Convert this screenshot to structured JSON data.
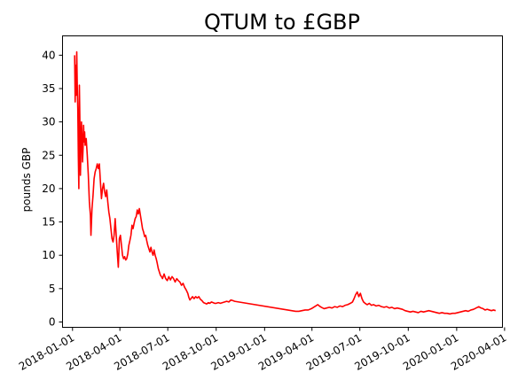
{
  "chart_data": {
    "type": "line",
    "title": "QTUM to £GBP",
    "xlabel": "",
    "ylabel": "pounds GBP",
    "ylim": [
      -0.8,
      42.9
    ],
    "xlim": [
      "2017-12-13",
      "2020-03-28"
    ],
    "grid": false,
    "legend": "none",
    "x_ticks": [
      "2018-01-01",
      "2018-04-01",
      "2018-07-01",
      "2018-10-01",
      "2019-01-01",
      "2019-04-01",
      "2019-07-01",
      "2019-10-01",
      "2020-01-01",
      "2020-04-01"
    ],
    "y_ticks": [
      0,
      5,
      10,
      15,
      20,
      25,
      30,
      35,
      40
    ],
    "series": [
      {
        "color": "#ff0000",
        "points": [
          [
            "2018-01-05",
            40.0
          ],
          [
            "2018-01-06",
            33.0
          ],
          [
            "2018-01-07",
            38.5
          ],
          [
            "2018-01-08",
            34.0
          ],
          [
            "2018-01-09",
            40.5
          ],
          [
            "2018-01-10",
            35.5
          ],
          [
            "2018-01-11",
            32.0
          ],
          [
            "2018-01-12",
            25.0
          ],
          [
            "2018-01-13",
            20.0
          ],
          [
            "2018-01-14",
            35.5
          ],
          [
            "2018-01-15",
            30.0
          ],
          [
            "2018-01-16",
            22.0
          ],
          [
            "2018-01-17",
            26.0
          ],
          [
            "2018-01-18",
            30.0
          ],
          [
            "2018-01-19",
            28.0
          ],
          [
            "2018-01-20",
            24.0
          ],
          [
            "2018-01-21",
            26.0
          ],
          [
            "2018-01-22",
            29.5
          ],
          [
            "2018-01-23",
            27.0
          ],
          [
            "2018-01-24",
            28.5
          ],
          [
            "2018-01-25",
            26.5
          ],
          [
            "2018-01-27",
            27.5
          ],
          [
            "2018-01-29",
            25.0
          ],
          [
            "2018-01-31",
            22.0
          ],
          [
            "2018-02-02",
            18.0
          ],
          [
            "2018-02-04",
            16.0
          ],
          [
            "2018-02-05",
            13.0
          ],
          [
            "2018-02-07",
            17.0
          ],
          [
            "2018-02-09",
            19.0
          ],
          [
            "2018-02-11",
            21.5
          ],
          [
            "2018-02-13",
            22.5
          ],
          [
            "2018-02-15",
            23.0
          ],
          [
            "2018-02-17",
            23.7
          ],
          [
            "2018-02-19",
            23.0
          ],
          [
            "2018-02-21",
            23.7
          ],
          [
            "2018-02-23",
            21.0
          ],
          [
            "2018-02-25",
            18.5
          ],
          [
            "2018-02-27",
            20.0
          ],
          [
            "2018-03-01",
            20.8
          ],
          [
            "2018-03-03",
            19.5
          ],
          [
            "2018-03-05",
            18.8
          ],
          [
            "2018-03-07",
            19.8
          ],
          [
            "2018-03-09",
            18.0
          ],
          [
            "2018-03-11",
            16.5
          ],
          [
            "2018-03-13",
            15.5
          ],
          [
            "2018-03-15",
            14.0
          ],
          [
            "2018-03-17",
            12.5
          ],
          [
            "2018-03-19",
            12.0
          ],
          [
            "2018-03-21",
            13.0
          ],
          [
            "2018-03-23",
            15.5
          ],
          [
            "2018-03-25",
            13.0
          ],
          [
            "2018-03-27",
            10.5
          ],
          [
            "2018-03-29",
            8.2
          ],
          [
            "2018-03-31",
            12.5
          ],
          [
            "2018-04-02",
            13.0
          ],
          [
            "2018-04-04",
            11.5
          ],
          [
            "2018-04-06",
            10.0
          ],
          [
            "2018-04-08",
            9.5
          ],
          [
            "2018-04-10",
            9.8
          ],
          [
            "2018-04-12",
            9.3
          ],
          [
            "2018-04-14",
            9.5
          ],
          [
            "2018-04-16",
            10.2
          ],
          [
            "2018-04-18",
            11.5
          ],
          [
            "2018-04-20",
            12.2
          ],
          [
            "2018-04-22",
            13.0
          ],
          [
            "2018-04-24",
            14.5
          ],
          [
            "2018-04-26",
            14.0
          ],
          [
            "2018-04-28",
            14.8
          ],
          [
            "2018-04-30",
            15.5
          ],
          [
            "2018-05-02",
            15.8
          ],
          [
            "2018-05-04",
            16.8
          ],
          [
            "2018-05-06",
            16.2
          ],
          [
            "2018-05-08",
            17.0
          ],
          [
            "2018-05-10",
            16.0
          ],
          [
            "2018-05-12",
            15.0
          ],
          [
            "2018-05-14",
            14.0
          ],
          [
            "2018-05-16",
            13.5
          ],
          [
            "2018-05-18",
            12.8
          ],
          [
            "2018-05-20",
            13.0
          ],
          [
            "2018-05-22",
            12.2
          ],
          [
            "2018-05-24",
            11.5
          ],
          [
            "2018-05-26",
            11.0
          ],
          [
            "2018-05-28",
            10.5
          ],
          [
            "2018-05-30",
            11.2
          ],
          [
            "2018-06-01",
            10.5
          ],
          [
            "2018-06-03",
            10.0
          ],
          [
            "2018-06-05",
            10.8
          ],
          [
            "2018-06-07",
            10.0
          ],
          [
            "2018-06-09",
            9.5
          ],
          [
            "2018-06-11",
            8.8
          ],
          [
            "2018-06-13",
            8.0
          ],
          [
            "2018-06-15",
            7.5
          ],
          [
            "2018-06-17",
            7.0
          ],
          [
            "2018-06-19",
            6.8
          ],
          [
            "2018-06-21",
            6.5
          ],
          [
            "2018-06-24",
            7.2
          ],
          [
            "2018-06-27",
            6.5
          ],
          [
            "2018-06-30",
            6.2
          ],
          [
            "2018-07-03",
            6.8
          ],
          [
            "2018-07-06",
            6.3
          ],
          [
            "2018-07-09",
            6.8
          ],
          [
            "2018-07-12",
            6.5
          ],
          [
            "2018-07-15",
            6.0
          ],
          [
            "2018-07-18",
            6.5
          ],
          [
            "2018-07-21",
            6.2
          ],
          [
            "2018-07-24",
            6.0
          ],
          [
            "2018-07-27",
            5.5
          ],
          [
            "2018-07-30",
            5.8
          ],
          [
            "2018-08-02",
            5.2
          ],
          [
            "2018-08-05",
            4.8
          ],
          [
            "2018-08-08",
            4.3
          ],
          [
            "2018-08-10",
            3.7
          ],
          [
            "2018-08-12",
            3.3
          ],
          [
            "2018-08-14",
            3.5
          ],
          [
            "2018-08-17",
            3.8
          ],
          [
            "2018-08-20",
            3.5
          ],
          [
            "2018-08-23",
            3.8
          ],
          [
            "2018-08-26",
            3.6
          ],
          [
            "2018-08-29",
            3.8
          ],
          [
            "2018-09-01",
            3.4
          ],
          [
            "2018-09-04",
            3.2
          ],
          [
            "2018-09-07",
            2.9
          ],
          [
            "2018-09-10",
            2.8
          ],
          [
            "2018-09-13",
            2.7
          ],
          [
            "2018-09-16",
            2.9
          ],
          [
            "2018-09-19",
            2.8
          ],
          [
            "2018-09-22",
            3.0
          ],
          [
            "2018-09-25",
            2.9
          ],
          [
            "2018-09-28",
            2.8
          ],
          [
            "2018-10-01",
            2.8
          ],
          [
            "2018-10-05",
            2.9
          ],
          [
            "2018-10-09",
            2.8
          ],
          [
            "2018-10-13",
            2.9
          ],
          [
            "2018-10-17",
            3.0
          ],
          [
            "2018-10-21",
            3.1
          ],
          [
            "2018-10-25",
            3.0
          ],
          [
            "2018-10-29",
            3.3
          ],
          [
            "2018-11-02",
            3.2
          ],
          [
            "2018-11-05",
            3.1
          ],
          [
            "2019-03-01",
            1.6
          ],
          [
            "2019-03-07",
            1.6
          ],
          [
            "2019-03-13",
            1.7
          ],
          [
            "2019-03-19",
            1.8
          ],
          [
            "2019-03-25",
            1.8
          ],
          [
            "2019-03-31",
            2.0
          ],
          [
            "2019-04-04",
            2.2
          ],
          [
            "2019-04-08",
            2.4
          ],
          [
            "2019-04-12",
            2.6
          ],
          [
            "2019-04-15",
            2.4
          ],
          [
            "2019-04-19",
            2.2
          ],
          [
            "2019-04-24",
            2.0
          ],
          [
            "2019-04-29",
            2.1
          ],
          [
            "2019-05-04",
            2.2
          ],
          [
            "2019-05-09",
            2.1
          ],
          [
            "2019-05-14",
            2.3
          ],
          [
            "2019-05-19",
            2.2
          ],
          [
            "2019-05-24",
            2.4
          ],
          [
            "2019-05-29",
            2.3
          ],
          [
            "2019-06-03",
            2.5
          ],
          [
            "2019-06-08",
            2.6
          ],
          [
            "2019-06-13",
            2.8
          ],
          [
            "2019-06-17",
            3.0
          ],
          [
            "2019-06-20",
            3.5
          ],
          [
            "2019-06-23",
            4.1
          ],
          [
            "2019-06-26",
            4.5
          ],
          [
            "2019-06-29",
            3.8
          ],
          [
            "2019-07-02",
            4.3
          ],
          [
            "2019-07-05",
            3.5
          ],
          [
            "2019-07-08",
            3.0
          ],
          [
            "2019-07-11",
            2.8
          ],
          [
            "2019-07-15",
            2.6
          ],
          [
            "2019-07-19",
            2.8
          ],
          [
            "2019-07-23",
            2.5
          ],
          [
            "2019-07-27",
            2.6
          ],
          [
            "2019-08-01",
            2.4
          ],
          [
            "2019-08-06",
            2.5
          ],
          [
            "2019-08-11",
            2.3
          ],
          [
            "2019-08-16",
            2.2
          ],
          [
            "2019-08-21",
            2.3
          ],
          [
            "2019-08-26",
            2.1
          ],
          [
            "2019-08-31",
            2.2
          ],
          [
            "2019-09-05",
            2.0
          ],
          [
            "2019-09-10",
            2.1
          ],
          [
            "2019-09-15",
            2.0
          ],
          [
            "2019-09-20",
            1.9
          ],
          [
            "2019-09-25",
            1.7
          ],
          [
            "2019-09-30",
            1.6
          ],
          [
            "2019-10-05",
            1.5
          ],
          [
            "2019-10-10",
            1.6
          ],
          [
            "2019-10-15",
            1.5
          ],
          [
            "2019-10-20",
            1.4
          ],
          [
            "2019-10-25",
            1.6
          ],
          [
            "2019-10-30",
            1.5
          ],
          [
            "2019-11-04",
            1.6
          ],
          [
            "2019-11-09",
            1.7
          ],
          [
            "2019-11-14",
            1.6
          ],
          [
            "2019-11-19",
            1.5
          ],
          [
            "2019-11-24",
            1.4
          ],
          [
            "2019-11-29",
            1.3
          ],
          [
            "2019-12-04",
            1.4
          ],
          [
            "2019-12-09",
            1.3
          ],
          [
            "2019-12-14",
            1.3
          ],
          [
            "2019-12-19",
            1.2
          ],
          [
            "2019-12-24",
            1.3
          ],
          [
            "2019-12-29",
            1.3
          ],
          [
            "2020-01-03",
            1.4
          ],
          [
            "2020-01-08",
            1.5
          ],
          [
            "2020-01-13",
            1.6
          ],
          [
            "2020-01-18",
            1.7
          ],
          [
            "2020-01-23",
            1.6
          ],
          [
            "2020-01-28",
            1.8
          ],
          [
            "2020-02-02",
            1.9
          ],
          [
            "2020-02-07",
            2.1
          ],
          [
            "2020-02-12",
            2.3
          ],
          [
            "2020-02-16",
            2.1
          ],
          [
            "2020-02-20",
            2.0
          ],
          [
            "2020-02-24",
            1.8
          ],
          [
            "2020-02-28",
            1.9
          ],
          [
            "2020-03-03",
            1.8
          ],
          [
            "2020-03-07",
            1.7
          ],
          [
            "2020-03-11",
            1.8
          ],
          [
            "2020-03-15",
            1.7
          ]
        ]
      }
    ]
  }
}
